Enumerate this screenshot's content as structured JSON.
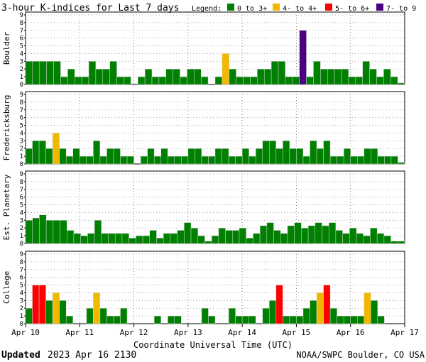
{
  "title": "3-hour K-indices for Last 7 days",
  "legend": {
    "label": "Legend:",
    "items": [
      {
        "label": "0 to 3+",
        "color": "#008000"
      },
      {
        "label": "4- to 4+",
        "color": "#f0b800"
      },
      {
        "label": "5- to 6+",
        "color": "#ff0000"
      },
      {
        "label": "7- to 9",
        "color": "#4b0082"
      }
    ]
  },
  "xlabel": "Coordinate Universal Time (UTC)",
  "x_ticks": [
    "Apr 10",
    "Apr 11",
    "Apr 12",
    "Apr 13",
    "Apr 14",
    "Apr 15",
    "Apr 16",
    "Apr 17"
  ],
  "y_ticks": [
    "0",
    "1",
    "2",
    "3",
    "4",
    "5",
    "6",
    "7",
    "8",
    "9"
  ],
  "footer": {
    "updated_label": "Updated",
    "updated_time": "2023 Apr 16 2130",
    "credit": "NOAA/SWPC Boulder, CO USA"
  },
  "chart_data": [
    {
      "type": "bar",
      "ylabel": "Boulder",
      "ylim": [
        0,
        9
      ],
      "grid": true,
      "values": [
        3,
        3,
        3,
        3,
        3,
        1,
        2,
        1,
        1,
        3,
        2,
        2,
        3,
        1,
        1,
        0,
        1,
        2,
        1,
        1,
        2,
        2,
        1,
        2,
        2,
        1,
        0,
        1,
        4,
        2,
        1,
        1,
        1,
        2,
        2,
        3,
        3,
        1,
        1,
        7,
        1,
        3,
        2,
        2,
        2,
        2,
        1,
        1,
        3,
        2,
        1,
        2,
        1,
        0.2
      ]
    },
    {
      "type": "bar",
      "ylabel": "Fredericksburg",
      "ylim": [
        0,
        9
      ],
      "grid": true,
      "values": [
        2,
        3,
        3,
        2,
        4,
        2,
        1,
        2,
        1,
        1,
        3,
        1,
        2,
        2,
        1,
        1,
        0,
        1,
        2,
        1,
        2,
        1,
        1,
        1,
        2,
        2,
        1,
        1,
        2,
        2,
        1,
        1,
        2,
        1,
        2,
        3,
        3,
        2,
        3,
        2,
        2,
        1,
        3,
        2,
        3,
        1,
        1,
        2,
        1,
        1,
        2,
        2,
        1,
        1,
        1,
        0.2
      ]
    },
    {
      "type": "bar",
      "ylabel": "Est. Planetary",
      "ylim": [
        0,
        9
      ],
      "grid": true,
      "values": [
        3,
        3.3,
        3.7,
        3,
        3,
        3,
        1.7,
        1.3,
        1,
        1.3,
        3,
        1.3,
        1.3,
        1.3,
        1.3,
        0.7,
        1,
        1,
        1.7,
        0.7,
        1.3,
        1.3,
        1.7,
        2.7,
        2,
        1,
        0.3,
        1,
        2,
        1.7,
        1.7,
        2,
        0.7,
        1.3,
        2.3,
        2.7,
        1.7,
        1.3,
        2.3,
        2.7,
        2,
        2.3,
        2.7,
        2.3,
        2.7,
        1.7,
        1.3,
        2,
        1.3,
        1,
        2,
        1.3,
        1,
        0.3,
        0.3
      ]
    },
    {
      "type": "bar",
      "ylabel": "College",
      "ylim": [
        0,
        9
      ],
      "grid": true,
      "values": [
        2,
        5,
        5,
        3,
        4,
        3,
        1,
        0,
        0,
        2,
        4,
        2,
        1,
        1,
        2,
        0,
        0,
        0,
        0,
        1,
        0,
        1,
        1,
        0,
        0,
        0,
        2,
        1,
        0,
        0,
        2,
        1,
        1,
        1,
        0,
        2,
        3,
        5,
        1,
        1,
        1,
        2,
        3,
        4,
        5,
        2,
        1,
        1,
        1,
        1,
        4,
        3,
        1,
        0,
        0,
        0
      ]
    }
  ]
}
